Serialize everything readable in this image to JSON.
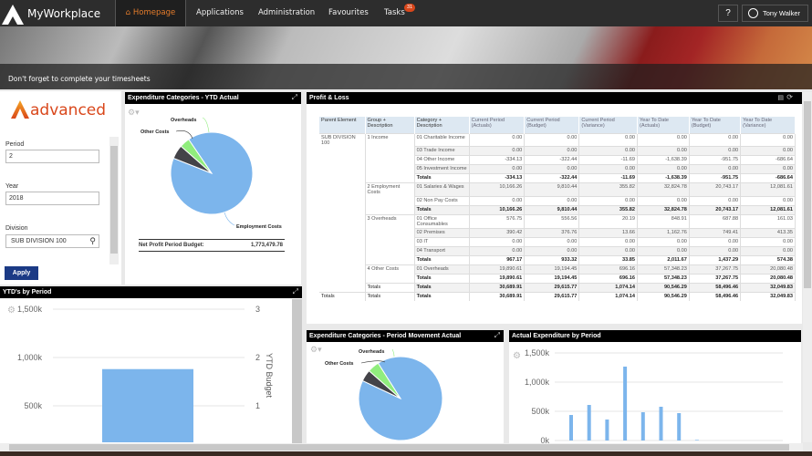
{
  "nav": {
    "app_title": "MyWorkplace",
    "items": [
      "Homepage",
      "Applications",
      "Administration",
      "Favourites",
      "Tasks"
    ],
    "tasks_badge": "31",
    "user": "Tony Walker",
    "help": "?",
    "accent": "#e57c2b"
  },
  "banner": {
    "message": "Don't forget to complete your timesheets"
  },
  "filters": {
    "brand": "advanced",
    "period_label": "Period",
    "period": "2",
    "year_label": "Year",
    "year": "2018",
    "division_label": "Division",
    "division": "SUB DIVISION 100",
    "apply": "Apply"
  },
  "ytd_pie": {
    "title": "Expenditure Categories - YTD Actual",
    "footer_label": "Net Profit Period Budget:",
    "footer_value": "1,773,479.78",
    "chart_data": {
      "type": "pie",
      "slices": [
        {
          "name": "Employment Costs",
          "value": 90.5,
          "color": "#7cb5ec"
        },
        {
          "name": "Other Costs",
          "value": 5.5,
          "color": "#434348"
        },
        {
          "name": "Overheads",
          "value": 4,
          "color": "#90ed7d"
        }
      ]
    }
  },
  "pl": {
    "title": "Profit & Loss",
    "columns": [
      "Parent Element",
      "Group + Description",
      "Category + Description",
      "Current Period (Actuals)",
      "Current Period (Budget)",
      "Current Period (Variance)",
      "Year To Date (Actuals)",
      "Year To Date (Budget)",
      "Year To Date (Variance)"
    ],
    "rows": [
      [
        "SUB DIVISION 100",
        "1 Income",
        "01 Charitable Income",
        "0.00",
        "0.00",
        "0.00",
        "0.00",
        "0.00",
        "0.00"
      ],
      [
        "",
        "",
        "03 Trade Income",
        "0.00",
        "0.00",
        "0.00",
        "0.00",
        "0.00",
        "0.00"
      ],
      [
        "",
        "",
        "04 Other Income",
        "-334.13",
        "-322.44",
        "-11.69",
        "-1,638.39",
        "-951.75",
        "-686.64"
      ],
      [
        "",
        "",
        "05 Investment Income",
        "0.00",
        "0.00",
        "0.00",
        "0.00",
        "0.00",
        "0.00"
      ],
      [
        "",
        "",
        "Totals",
        "-334.13",
        "-322.44",
        "-11.69",
        "-1,638.39",
        "-951.75",
        "-686.64"
      ],
      [
        "",
        "2 Employment Costs",
        "01 Salaries & Wages",
        "10,166.26",
        "9,810.44",
        "355.82",
        "32,824.78",
        "20,743.17",
        "12,081.61"
      ],
      [
        "",
        "",
        "02 Non Pay Costs",
        "0.00",
        "0.00",
        "0.00",
        "0.00",
        "0.00",
        "0.00"
      ],
      [
        "",
        "",
        "Totals",
        "10,166.26",
        "9,810.44",
        "355.82",
        "32,824.78",
        "20,743.17",
        "12,081.61"
      ],
      [
        "",
        "3 Overheads",
        "01 Office Consumables",
        "576.75",
        "556.56",
        "20.19",
        "848.91",
        "687.88",
        "161.03"
      ],
      [
        "",
        "",
        "02 Premises",
        "390.42",
        "376.76",
        "13.66",
        "1,162.76",
        "749.41",
        "413.35"
      ],
      [
        "",
        "",
        "03 IT",
        "0.00",
        "0.00",
        "0.00",
        "0.00",
        "0.00",
        "0.00"
      ],
      [
        "",
        "",
        "04 Transport",
        "0.00",
        "0.00",
        "0.00",
        "0.00",
        "0.00",
        "0.00"
      ],
      [
        "",
        "",
        "Totals",
        "967.17",
        "933.32",
        "33.85",
        "2,011.67",
        "1,437.29",
        "574.38"
      ],
      [
        "",
        "4 Other Costs",
        "01 Overheads",
        "19,890.61",
        "19,194.45",
        "696.16",
        "57,348.23",
        "37,267.75",
        "20,080.48"
      ],
      [
        "",
        "",
        "Totals",
        "19,890.61",
        "19,194.45",
        "696.16",
        "57,348.23",
        "37,267.75",
        "20,080.48"
      ],
      [
        "",
        "Totals",
        "Totals",
        "30,689.91",
        "29,615.77",
        "1,074.14",
        "90,546.29",
        "58,496.46",
        "32,049.83"
      ],
      [
        "Totals",
        "Totals",
        "Totals",
        "30,689.91",
        "29,615.77",
        "1,074.14",
        "90,546.29",
        "58,496.46",
        "32,049.83"
      ]
    ]
  },
  "ytd_period": {
    "title": "YTD's by Period",
    "chart_data": {
      "type": "bar",
      "values": [
        880000
      ],
      "color": "#7cb5ec",
      "ylim": [
        0,
        1500000
      ],
      "yticks": [
        "500k",
        "1,000k",
        "1,500k"
      ],
      "y2label": "YTD Budget",
      "y2ticks": [
        "1",
        "2",
        "3"
      ]
    }
  },
  "pm_pie": {
    "title": "Expenditure Categories - Period Movement Actual",
    "chart_data": {
      "type": "pie",
      "slices": [
        {
          "name": "Employment Costs",
          "value": 91,
          "color": "#7cb5ec"
        },
        {
          "name": "Other Costs",
          "value": 4.5,
          "color": "#434348"
        },
        {
          "name": "Overheads",
          "value": 4.5,
          "color": "#90ed7d"
        }
      ]
    }
  },
  "actual_exp": {
    "title": "Actual Expenditure by Period",
    "chart_data": {
      "type": "bar",
      "values": [
        437000,
        609000,
        359000,
        1266000,
        484000,
        578000,
        469000,
        10000
      ],
      "color": "#7cb5ec",
      "ylim": [
        0,
        1500000
      ],
      "yticks": [
        "0k",
        "500k",
        "1,000k",
        "1,500k"
      ]
    }
  }
}
